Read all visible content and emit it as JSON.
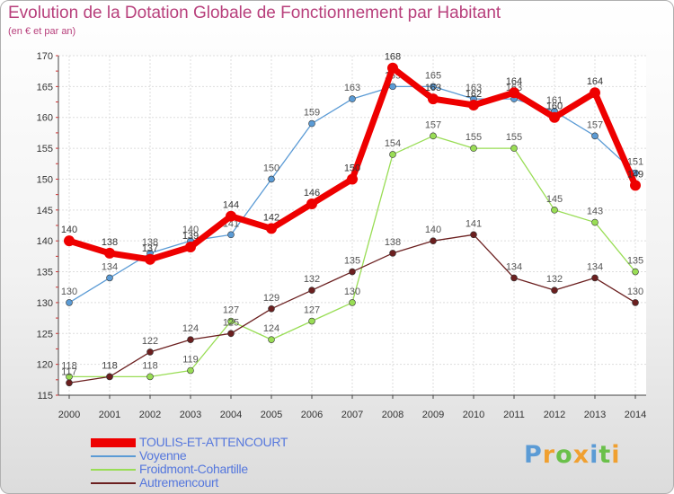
{
  "chart_data": {
    "type": "line",
    "title": "Evolution de la Dotation Globale de Fonctionnement par Habitant",
    "subtitle": "(en € et par an)",
    "xlabel": "",
    "ylabel": "",
    "x": [
      "2000",
      "2001",
      "2002",
      "2003",
      "2004",
      "2005",
      "2006",
      "2007",
      "2008",
      "2009",
      "2010",
      "2011",
      "2012",
      "2013",
      "2014"
    ],
    "ylim": [
      115,
      170
    ],
    "yticks": [
      115,
      120,
      125,
      130,
      135,
      140,
      145,
      150,
      155,
      160,
      165,
      170
    ],
    "grid": true,
    "legend_position": "bottom-left",
    "series": [
      {
        "name": "TOULIS-ET-ATTENCOURT",
        "color": "#ee0000",
        "highlight": true,
        "values": [
          140,
          138,
          137,
          139,
          144,
          142,
          146,
          150,
          168,
          163,
          162,
          164,
          160,
          164,
          149
        ]
      },
      {
        "name": "Voyenne",
        "color": "#5b9bd5",
        "highlight": false,
        "values": [
          130,
          134,
          138,
          140,
          141,
          150,
          159,
          163,
          165,
          165,
          163,
          163,
          161,
          157,
          151
        ]
      },
      {
        "name": "Froidmont-Cohartille",
        "color": "#99dd55",
        "highlight": false,
        "values": [
          118,
          118,
          118,
          119,
          127,
          124,
          127,
          130,
          154,
          157,
          155,
          155,
          145,
          143,
          135
        ]
      },
      {
        "name": "Autremencourt",
        "color": "#6b1f1f",
        "highlight": false,
        "values": [
          117,
          118,
          122,
          124,
          125,
          129,
          132,
          135,
          138,
          140,
          141,
          134,
          132,
          134,
          130
        ]
      }
    ]
  },
  "legend": {
    "items": [
      "TOULIS-ET-ATTENCOURT",
      "Voyenne",
      "Froidmont-Cohartille",
      "Autremencourt"
    ],
    "text_color": "#5577dd"
  },
  "brand": {
    "letters": [
      "P",
      "r",
      "o",
      "x",
      "i",
      "t",
      "i"
    ],
    "colors": [
      "#5b9bd5",
      "#f0a030",
      "#6ac04a",
      "#f0a030",
      "#5b9bd5",
      "#6ac04a",
      "#f0a030"
    ]
  }
}
